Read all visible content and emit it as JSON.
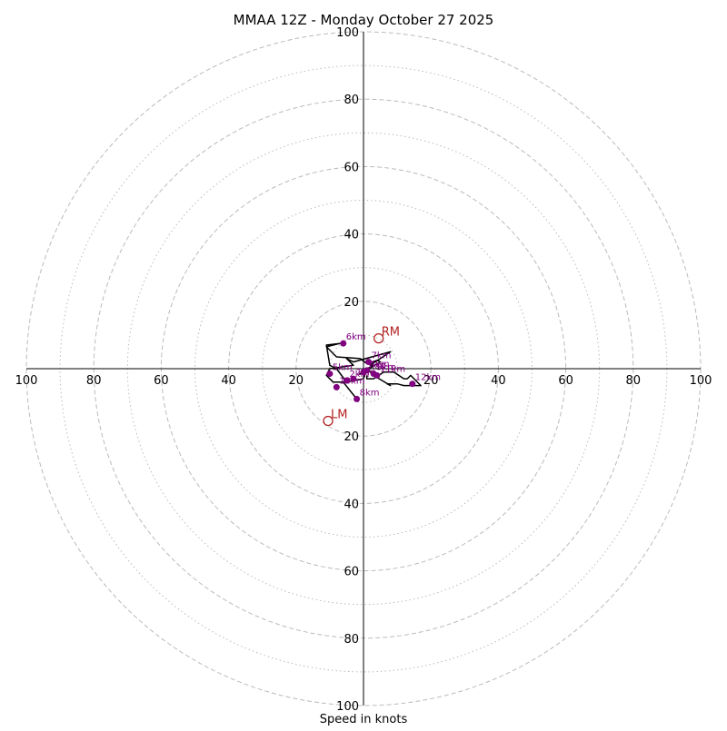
{
  "chart_data": {
    "type": "hodograph",
    "title": "MMAA 12Z - Monday October 27 2025",
    "xlabel": "Speed in knots",
    "ylabel": "",
    "range": [
      -100,
      100
    ],
    "rings_major": [
      20,
      40,
      60,
      80,
      100
    ],
    "rings_minor": [
      10,
      30,
      50,
      70,
      90
    ],
    "x_tick_labels": [
      "100",
      "80",
      "60",
      "40",
      "20",
      "20",
      "40",
      "60",
      "80",
      "100"
    ],
    "x_tick_values": [
      -100,
      -80,
      -60,
      -40,
      -20,
      20,
      40,
      60,
      80,
      100
    ],
    "y_tick_labels": [
      "100",
      "80",
      "60",
      "40",
      "20",
      "20",
      "40",
      "60",
      "80",
      "100"
    ],
    "y_tick_values": [
      100,
      80,
      60,
      40,
      20,
      -20,
      -40,
      -60,
      -80,
      -100
    ],
    "colors": {
      "trace": "#000000",
      "height_marker": "#800080",
      "storm_motion": "#b22222",
      "ring": "#bbbbbb",
      "axis": "#000000"
    },
    "trace": {
      "name": "",
      "u": [
        -2,
        -6,
        -9,
        -11,
        -10,
        -3,
        -5,
        -3,
        8,
        2,
        3,
        1,
        0,
        -5,
        -8,
        -10,
        -11,
        -7,
        -11,
        -8,
        -1,
        1,
        3,
        4,
        5,
        -1,
        1,
        3,
        8,
        7,
        10,
        12,
        17,
        14,
        13,
        12,
        9,
        6,
        3,
        1,
        1
      ],
      "v": [
        -9,
        -4,
        -4,
        -2,
        0,
        1,
        3,
        2,
        5,
        1,
        1,
        0,
        -3,
        -4,
        0,
        1,
        7,
        7.5,
        6.5,
        3.5,
        3,
        1.5,
        2,
        2.5,
        2,
        -1.5,
        0,
        -2,
        -5,
        -4.5,
        -4.5,
        -5,
        -5,
        -2,
        -3,
        -3,
        -1,
        -1,
        -3,
        -3,
        -2
      ]
    },
    "height_markers": [
      {
        "label": "1km",
        "u": -3,
        "v": -3
      },
      {
        "label": "2km",
        "u": -5,
        "v": -3.5
      },
      {
        "label": "3km",
        "u": 0,
        "v": -1
      },
      {
        "label": "4km",
        "u": 1,
        "v": -0.5
      },
      {
        "label": "5km",
        "u": -10,
        "v": -1.5
      },
      {
        "label": "6km",
        "u": -6,
        "v": 7.5
      },
      {
        "label": "7km",
        "u": 1.5,
        "v": 2
      },
      {
        "label": "8km",
        "u": -2,
        "v": -9
      },
      {
        "label": "9km",
        "u": 3,
        "v": -1.5
      },
      {
        "label": "10km",
        "u": -8,
        "v": -5.5
      },
      {
        "label": "11km",
        "u": 4,
        "v": -2
      },
      {
        "label": "12km",
        "u": 14.5,
        "v": -4.5
      }
    ],
    "storm_motion": [
      {
        "label": "RM",
        "u": 4.5,
        "v": 9
      },
      {
        "label": "LM",
        "u": -10.5,
        "v": -15.5
      }
    ]
  }
}
